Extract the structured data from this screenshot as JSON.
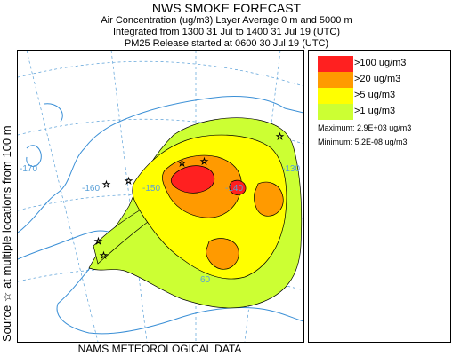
{
  "header": {
    "title": "NWS SMOKE FORECAST",
    "line1": "Air Concentration (ug/m3) Layer Average    0 m and  5000 m",
    "line2": "Integrated from 1300 31 Jul to 1400 31 Jul 19 (UTC)",
    "line3": "PM25 Release started at 0600 30 Jul 19 (UTC)"
  },
  "side_label": "Source ☆  at multiple locations  from   100 m",
  "footer": "NAMS METEOROLOGICAL DATA",
  "legend": {
    "items": [
      {
        "label": ">100 ug/m3",
        "color": "#ff2020"
      },
      {
        "label": ">20 ug/m3",
        "color": "#ff9a00"
      },
      {
        "label": ">5 ug/m3",
        "color": "#ffff00"
      },
      {
        "label": ">1 ug/m3",
        "color": "#ccff33"
      }
    ],
    "maximum": "Maximum: 2.9E+03 ug/m3",
    "minimum": "Minimum: 5.2E-08 ug/m3"
  },
  "map": {
    "lon_labels": [
      "-170",
      "-160",
      "-150",
      "-140",
      "-130"
    ],
    "lat_labels": [
      "60"
    ],
    "colors": {
      "coast": "#3a8fd6",
      "grid": "#5aa0d8",
      "contour": "#000000"
    }
  }
}
